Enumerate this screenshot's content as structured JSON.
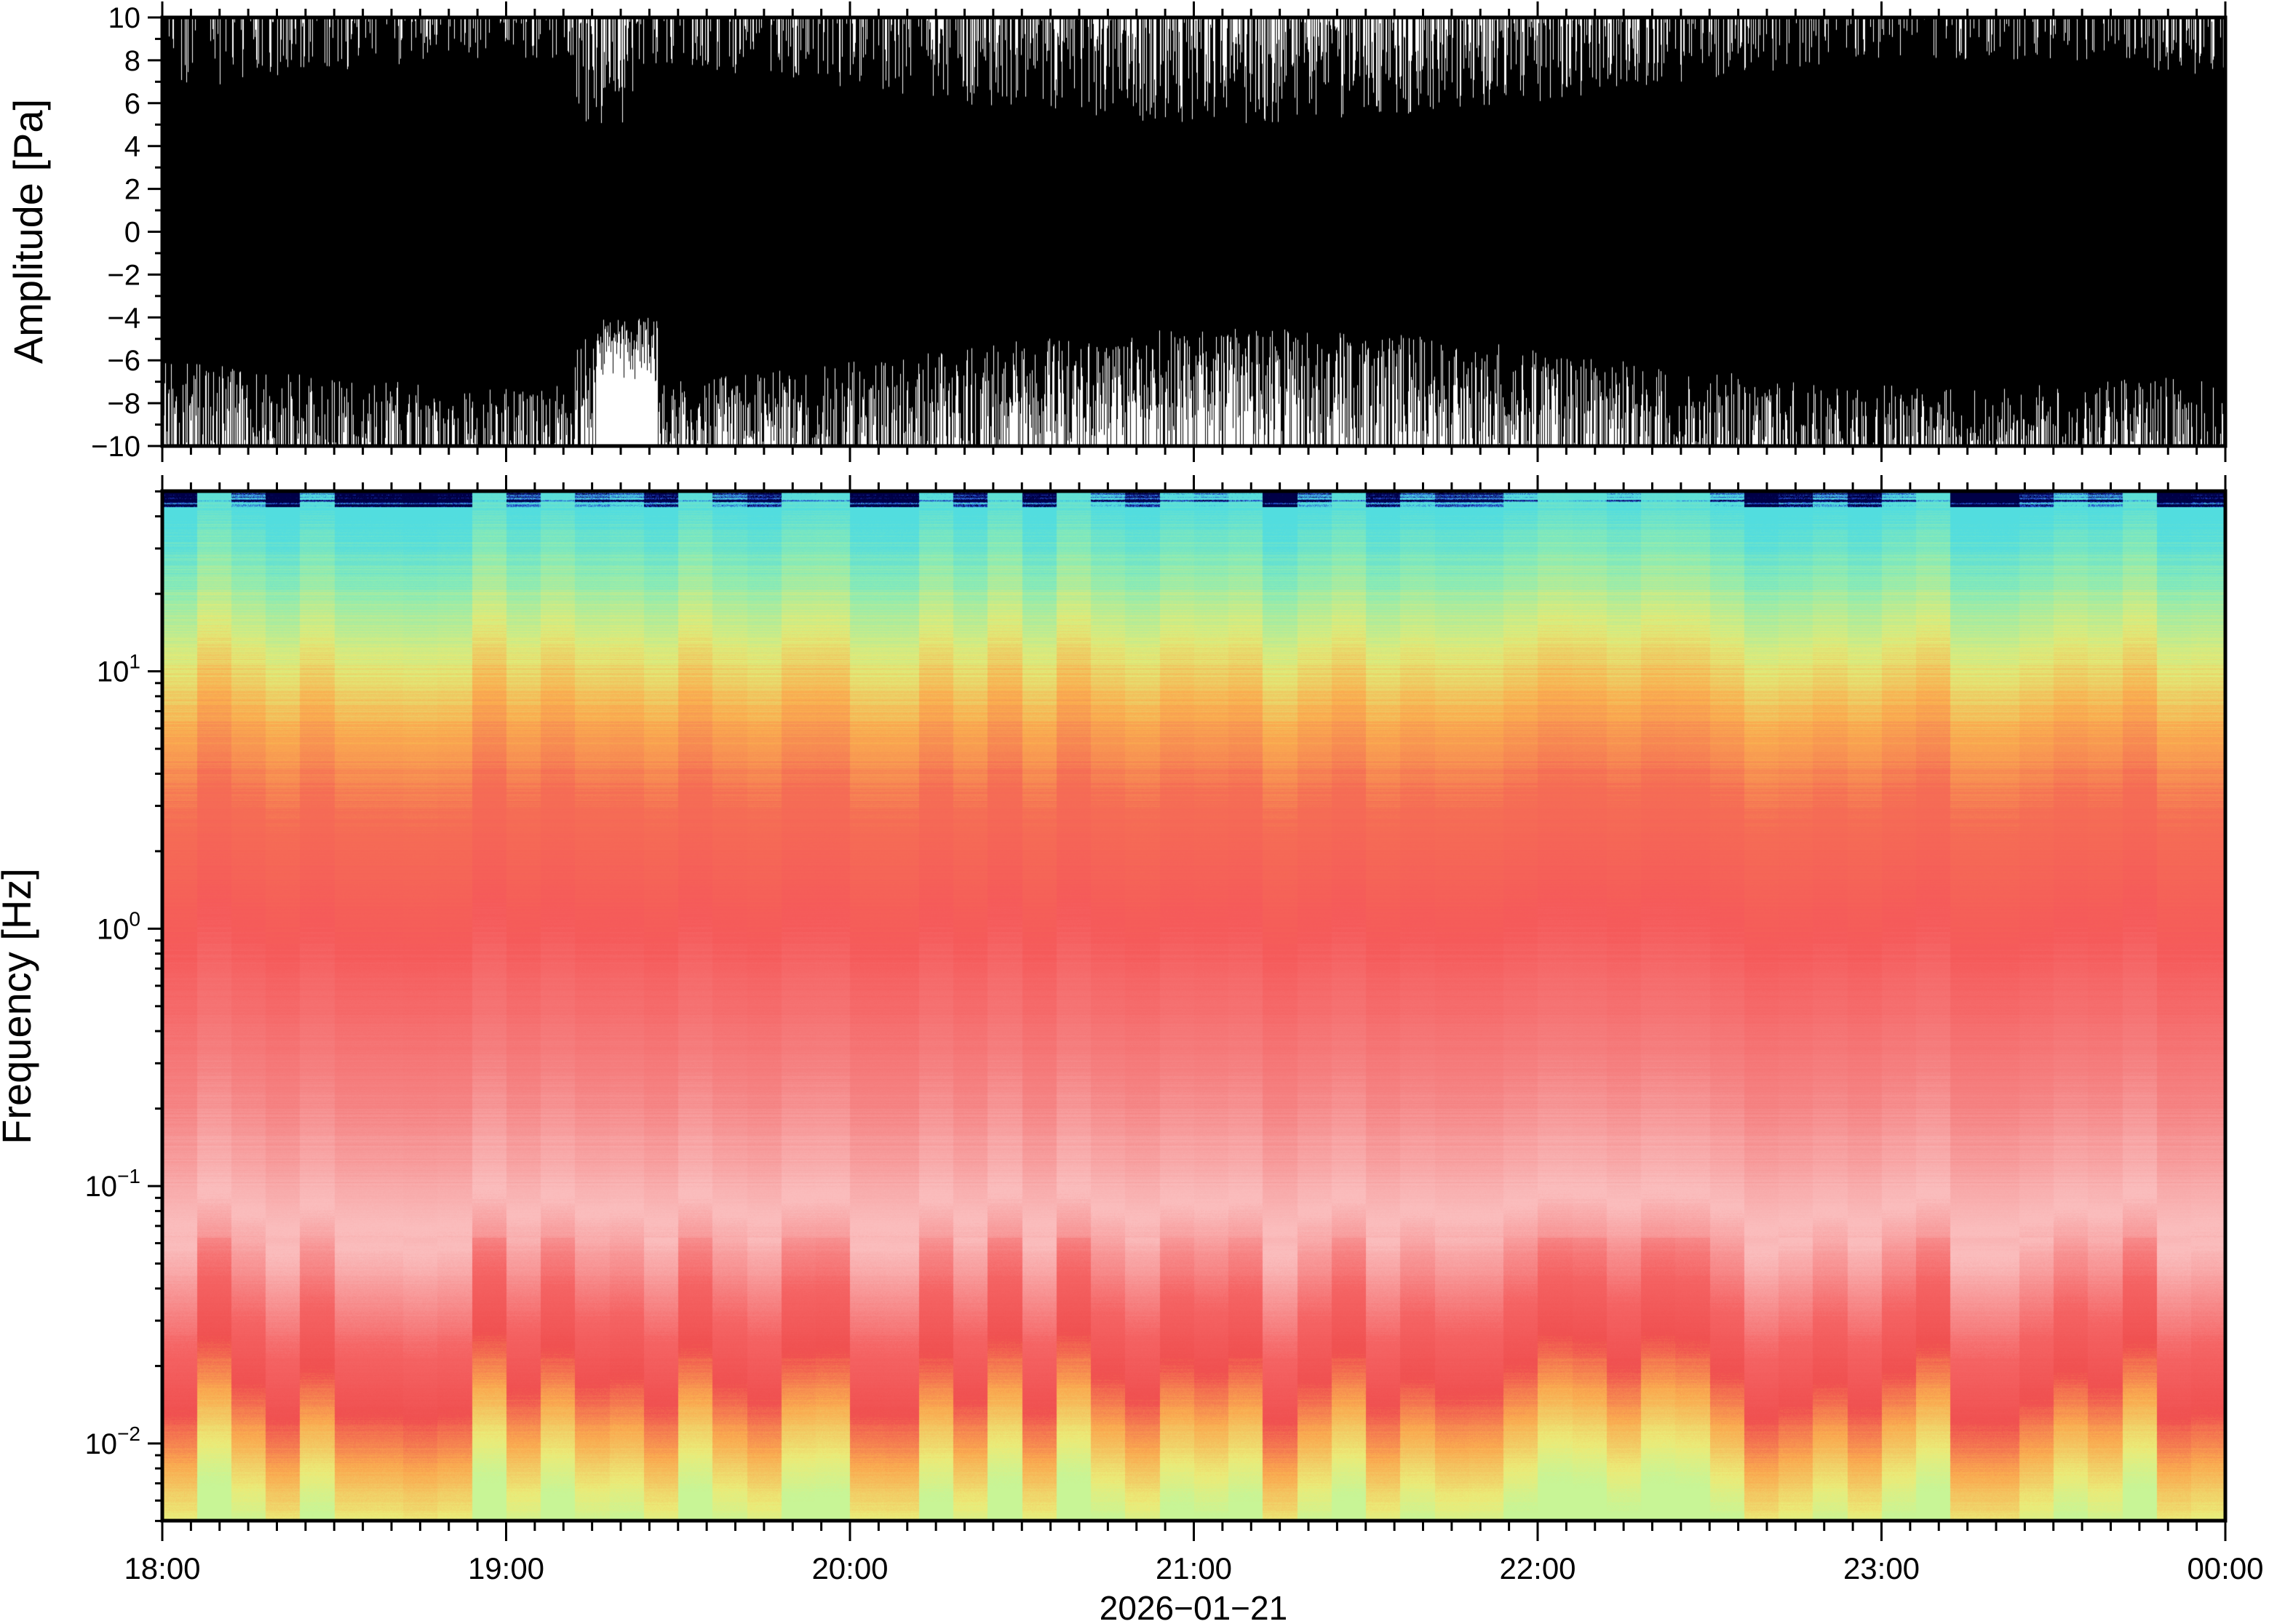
{
  "chart_data": [
    {
      "type": "line",
      "ylabel": "Amplitude [Pa]",
      "ylim": [
        -10,
        10
      ],
      "yticks": [
        "10",
        "8",
        "6",
        "4",
        "2",
        "0",
        "−2",
        "−4",
        "−6",
        "−8",
        "−10"
      ],
      "xlim": [
        "18:00",
        "00:00"
      ],
      "line_color": "#000000"
    },
    {
      "type": "heatmap",
      "ylabel": "Frequency [Hz]",
      "yscale": "log",
      "ylim": [
        0.005,
        50
      ],
      "yticks": [
        {
          "base": "10",
          "exp": "1",
          "value": 10
        },
        {
          "base": "10",
          "exp": "0",
          "value": 1
        },
        {
          "base": "10",
          "exp": "−1",
          "value": 0.1
        },
        {
          "base": "10",
          "exp": "−2",
          "value": 0.01
        }
      ],
      "xticks": [
        "18:00",
        "19:00",
        "20:00",
        "21:00",
        "22:00",
        "23:00",
        "00:00"
      ],
      "xlabel": "2026−01−21",
      "colormap": [
        "#00004a",
        "#2040d0",
        "#50e0e0",
        "#90f0b0",
        "#e8ec80",
        "#fcb050",
        "#f06050",
        "#f8a0a0",
        "#fde0e0"
      ]
    }
  ]
}
